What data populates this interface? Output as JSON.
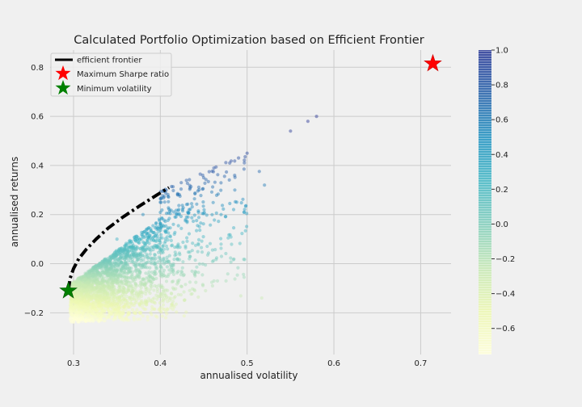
{
  "chart_data": {
    "type": "scatter",
    "title": "Calculated Portfolio Optimization based on Efficient Frontier",
    "xlabel": "annualised volatility",
    "ylabel": "annualised returns",
    "xlim": [
      0.273,
      0.735
    ],
    "ylim": [
      -0.37,
      0.87
    ],
    "xticks": [
      0.3,
      0.4,
      0.5,
      0.6,
      0.7
    ],
    "xtick_labels": [
      "0.3",
      "0.4",
      "0.5",
      "0.6",
      "0.7"
    ],
    "yticks": [
      -0.2,
      0.0,
      0.2,
      0.4,
      0.6,
      0.8
    ],
    "ytick_labels": [
      "−0.2",
      "0.0",
      "0.2",
      "0.4",
      "0.6",
      "0.8"
    ],
    "grid": true,
    "legend_position": "top-left",
    "legend": [
      {
        "label": "efficient frontier",
        "marker": "dash-dot-line",
        "color": "#000000"
      },
      {
        "label": "Maximum Sharpe ratio",
        "marker": "star",
        "color": "#ff0000"
      },
      {
        "label": "Minimum volatility",
        "marker": "star",
        "color": "#008000"
      }
    ],
    "efficient_frontier": {
      "x": [
        0.294,
        0.296,
        0.3,
        0.306,
        0.315,
        0.326,
        0.34,
        0.357,
        0.376,
        0.396,
        0.41
      ],
      "y": [
        -0.11,
        -0.06,
        -0.02,
        0.02,
        0.06,
        0.1,
        0.145,
        0.19,
        0.235,
        0.28,
        0.31
      ]
    },
    "max_sharpe": {
      "x": 0.714,
      "y": 0.815,
      "color": "#ff0000"
    },
    "min_volatility": {
      "x": 0.294,
      "y": -0.11,
      "color": "#008000"
    },
    "scatter_series": {
      "name": "",
      "color_by": "sharpe ratio",
      "colormap": "YlGnBu",
      "sample_points": {
        "x": [
          0.3,
          0.32,
          0.35,
          0.38,
          0.4,
          0.42,
          0.45,
          0.48,
          0.5,
          0.55,
          0.57,
          0.58,
          0.52,
          0.47,
          0.44
        ],
        "y": [
          -0.18,
          -0.05,
          0.1,
          0.2,
          0.25,
          0.28,
          0.35,
          0.41,
          0.45,
          0.54,
          0.58,
          0.6,
          0.32,
          0.2,
          -0.05
        ]
      }
    },
    "colorbar": {
      "range": [
        -0.75,
        1.0
      ],
      "ticks": [
        1.0,
        0.8,
        0.6,
        0.4,
        0.2,
        0.0,
        -0.2,
        -0.4,
        -0.6
      ],
      "tick_labels": [
        "1.0",
        "0.8",
        "0.6",
        "0.4",
        "0.2",
        "0.0",
        "−0.2",
        "−0.4",
        "−0.6"
      ]
    }
  }
}
